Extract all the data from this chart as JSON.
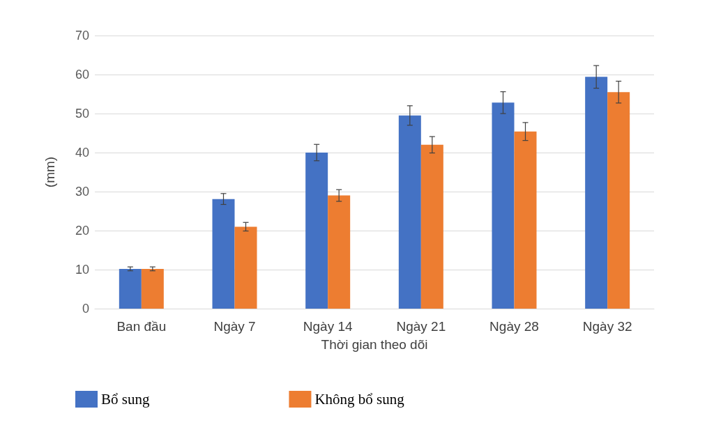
{
  "chart_data": {
    "type": "bar",
    "xlabel": "Thời gian theo dõi",
    "ylabel": "(mm)",
    "categories": [
      "Ban đầu",
      "Ngày 7",
      "Ngày 14",
      "Ngày 21",
      "Ngày 28",
      "Ngày 32"
    ],
    "series": [
      {
        "name": "Bổ sung",
        "color": "#4472c4",
        "values": [
          10.2,
          28.1,
          40,
          49.5,
          52.8,
          59.4
        ],
        "errors": [
          0.5,
          1.4,
          2.1,
          2.5,
          2.8,
          2.9
        ]
      },
      {
        "name": "Không bổ sung",
        "color": "#ed7d31",
        "values": [
          10.2,
          21,
          29,
          42,
          45.4,
          55.5
        ],
        "errors": [
          0.5,
          1.1,
          1.5,
          2.1,
          2.3,
          2.8
        ]
      }
    ],
    "ylim": [
      0,
      70
    ],
    "yticks": [
      0,
      10,
      20,
      30,
      40,
      50,
      60,
      70
    ],
    "grid": "y",
    "legend": "bottom"
  }
}
